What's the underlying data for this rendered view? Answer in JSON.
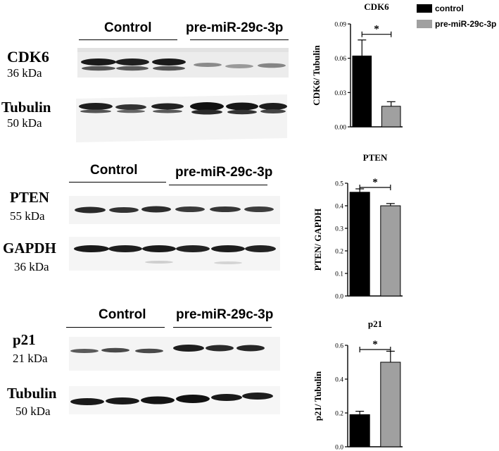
{
  "legend": {
    "control": {
      "label": "control",
      "color": "#000000"
    },
    "treated": {
      "label": "pre-miR-29c-3p",
      "color": "#a0a0a0"
    }
  },
  "blots": {
    "cdk6": {
      "group_control": "Control",
      "group_treated": "pre-miR-29c-3p",
      "top_label": "CDK6",
      "top_kda": "36 kDa",
      "bottom_label": "Tubulin",
      "bottom_kda": "50 kDa"
    },
    "pten": {
      "group_control": "Control",
      "group_treated": "pre-miR-29c-3p",
      "top_label": "PTEN",
      "top_kda": "55 kDa",
      "bottom_label": "GAPDH",
      "bottom_kda": "36 kDa"
    },
    "p21": {
      "group_control": "Control",
      "group_treated": "pre-miR-29c-3p",
      "top_label": "p21",
      "top_kda": "21 kDa",
      "bottom_label": "Tubulin",
      "bottom_kda": "50 kDa"
    }
  },
  "chart_data": [
    {
      "type": "bar",
      "title": "CDK6",
      "ylabel": "CDK6/ Tubulin",
      "categories": [
        "control",
        "pre-miR-29c-3p"
      ],
      "values": [
        0.062,
        0.018
      ],
      "errors": [
        0.014,
        0.004
      ],
      "ylim": [
        0,
        0.09
      ],
      "yticks": [
        "0.00",
        "0.03",
        "0.06",
        "0.09"
      ],
      "ytick_values": [
        0,
        0.03,
        0.06,
        0.09
      ],
      "colors": [
        "#000000",
        "#a0a0a0"
      ],
      "significance": "*"
    },
    {
      "type": "bar",
      "title": "PTEN",
      "ylabel": "PTEN/ GAPDH",
      "categories": [
        "control",
        "pre-miR-29c-3p"
      ],
      "values": [
        0.46,
        0.4
      ],
      "errors": [
        0.015,
        0.01
      ],
      "ylim": [
        0,
        0.5
      ],
      "yticks": [
        "0.0",
        "0.1",
        "0.2",
        "0.3",
        "0.4",
        "0.5"
      ],
      "ytick_values": [
        0,
        0.1,
        0.2,
        0.3,
        0.4,
        0.5
      ],
      "colors": [
        "#000000",
        "#a0a0a0"
      ],
      "significance": "*"
    },
    {
      "type": "bar",
      "title": "p21",
      "ylabel": "p21/ Tubulin",
      "categories": [
        "control",
        "pre-miR-29c-3p"
      ],
      "values": [
        0.19,
        0.5
      ],
      "errors": [
        0.02,
        0.065
      ],
      "ylim": [
        0,
        0.6
      ],
      "yticks": [
        "0.0",
        "0.2",
        "0.4",
        "0.6"
      ],
      "ytick_values": [
        0,
        0.2,
        0.4,
        0.6
      ],
      "colors": [
        "#000000",
        "#a0a0a0"
      ],
      "significance": "*"
    }
  ]
}
